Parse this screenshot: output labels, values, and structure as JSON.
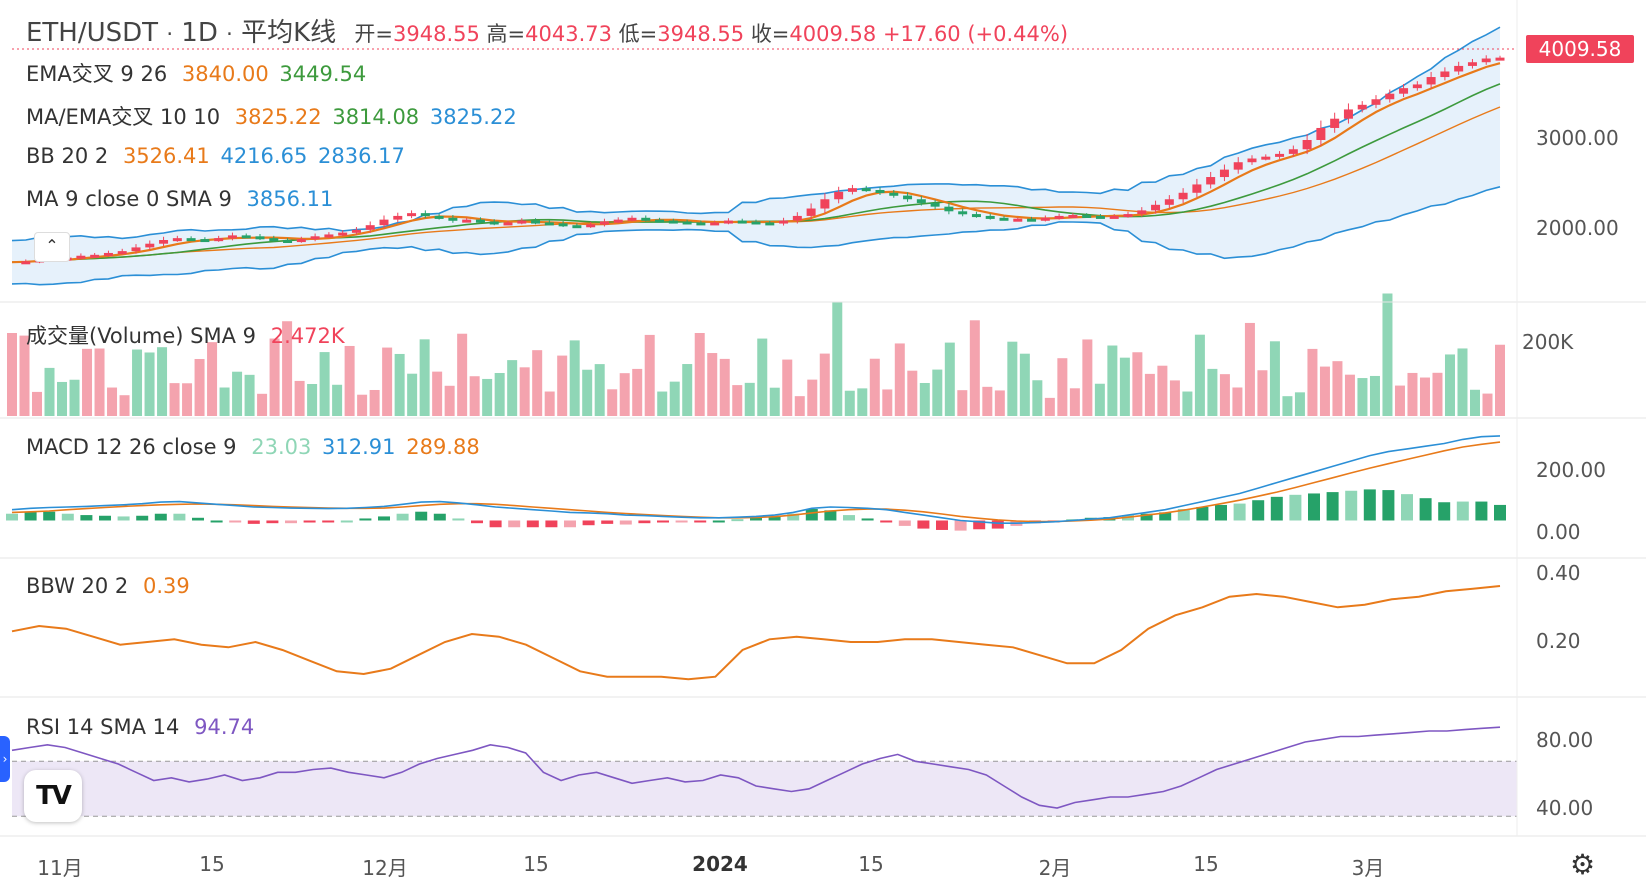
{
  "header": {
    "symbol": "ETH/USDT",
    "sep1": "·",
    "interval": "1D",
    "sep2": "·",
    "chart_style": "平均K线",
    "open_label": "开=",
    "open": "3948.55",
    "high_label": "高=",
    "high": "4043.73",
    "low_label": "低=",
    "low": "3948.55",
    "close_label": "收=",
    "close": "4009.58",
    "change": "+17.60 (+0.44%)"
  },
  "last_price_tag": "4009.58",
  "indicators": {
    "ema_cross": {
      "label": "EMA交叉 9 26",
      "v1": "3840.00",
      "v2": "3449.54"
    },
    "ma_ema_cross": {
      "label": "MA/EMA交叉 10 10",
      "v1": "3825.22",
      "v2": "3814.08",
      "v3": "3825.22"
    },
    "bb": {
      "label": "BB 20 2",
      "v1": "3526.41",
      "v2": "4216.65",
      "v3": "2836.17"
    },
    "ma": {
      "label": "MA 9 close 0 SMA 9",
      "v1": "3856.11"
    },
    "volume": {
      "label": "成交量(Volume) SMA 9",
      "v1": "2.472K"
    },
    "macd": {
      "label": "MACD 12 26 close 9",
      "v1": "23.03",
      "v2": "312.91",
      "v3": "289.88"
    },
    "bbw": {
      "label": "BBW 20 2",
      "v1": "0.39"
    },
    "rsi": {
      "label": "RSI 14 SMA 14",
      "v1": "94.74"
    }
  },
  "price_axis": [
    "3000.00",
    "2000.00"
  ],
  "volume_axis": [
    "200K"
  ],
  "macd_axis": [
    "200.00",
    "0.00"
  ],
  "bbw_axis": [
    "0.40",
    "0.20"
  ],
  "rsi_axis": [
    "80.00",
    "40.00"
  ],
  "time_axis": [
    {
      "label": "11月",
      "bold": false
    },
    {
      "label": "15",
      "bold": false
    },
    {
      "label": "12月",
      "bold": false
    },
    {
      "label": "15",
      "bold": false
    },
    {
      "label": "2024",
      "bold": true
    },
    {
      "label": "15",
      "bold": false
    },
    {
      "label": "2月",
      "bold": false
    },
    {
      "label": "15",
      "bold": false
    },
    {
      "label": "3月",
      "bold": false
    }
  ],
  "colors": {
    "up": "#f0435b",
    "down": "#26a269",
    "up_light": "#f4a3ae",
    "down_light": "#8fd6b6",
    "ema_fast": "#e87a1a",
    "ema_slow": "#3d9a3d",
    "bb": "#2b8fd6",
    "bb_fill": "#e6f1fb",
    "macd": "#2b8fd6",
    "signal": "#e87a1a",
    "bbw": "#e87a1a",
    "rsi": "#7e57c2",
    "rsi_band": "#ede7f6"
  },
  "chart_data": {
    "type": "candlestick-with-indicators",
    "symbol": "ETH/USDT",
    "interval": "1D",
    "style": "Heikin Ashi",
    "price_range": [
      1500,
      4200
    ],
    "close_series": [
      1800,
      1810,
      1830,
      1840,
      1850,
      1870,
      1880,
      1900,
      1920,
      1960,
      2000,
      2040,
      2060,
      2050,
      2040,
      2060,
      2090,
      2080,
      2060,
      2040,
      2030,
      2050,
      2080,
      2100,
      2120,
      2150,
      2200,
      2260,
      2300,
      2330,
      2300,
      2280,
      2250,
      2260,
      2240,
      2220,
      2230,
      2250,
      2230,
      2220,
      2200,
      2190,
      2210,
      2240,
      2260,
      2280,
      2260,
      2250,
      2240,
      2230,
      2220,
      2230,
      2250,
      2240,
      2230,
      2220,
      2250,
      2300,
      2380,
      2480,
      2560,
      2600,
      2580,
      2550,
      2520,
      2480,
      2440,
      2400,
      2350,
      2320,
      2300,
      2280,
      2270,
      2270,
      2260,
      2280,
      2300,
      2310,
      2300,
      2290,
      2300,
      2320,
      2360,
      2420,
      2480,
      2550,
      2640,
      2720,
      2800,
      2880,
      2920,
      2940,
      2970,
      3020,
      3120,
      3250,
      3350,
      3450,
      3500,
      3560,
      3620,
      3680,
      3720,
      3800,
      3860,
      3920,
      3960,
      4000,
      4009.58
    ],
    "volume_axis_max": "200K",
    "macd_range": [
      -50,
      320
    ],
    "macd_series": [
      40,
      45,
      48,
      50,
      52,
      55,
      58,
      62,
      68,
      70,
      65,
      60,
      55,
      50,
      48,
      46,
      45,
      44,
      45,
      48,
      52,
      60,
      68,
      70,
      65,
      58,
      50,
      45,
      40,
      35,
      30,
      28,
      25,
      20,
      18,
      15,
      12,
      10,
      10,
      12,
      15,
      20,
      30,
      45,
      50,
      48,
      45,
      40,
      30,
      20,
      10,
      0,
      -5,
      -10,
      -10,
      -8,
      -5,
      0,
      5,
      10,
      20,
      30,
      40,
      55,
      70,
      85,
      100,
      120,
      140,
      160,
      180,
      200,
      220,
      240,
      255,
      265,
      275,
      285,
      300,
      310,
      312.91
    ],
    "signal_series": [
      30,
      32,
      35,
      40,
      44,
      48,
      52,
      55,
      58,
      60,
      61,
      60,
      58,
      55,
      52,
      50,
      48,
      46,
      45,
      45,
      46,
      50,
      55,
      60,
      62,
      62,
      60,
      55,
      50,
      45,
      40,
      35,
      30,
      26,
      22,
      18,
      15,
      12,
      10,
      10,
      11,
      14,
      20,
      28,
      35,
      40,
      42,
      42,
      38,
      32,
      24,
      15,
      8,
      2,
      -2,
      -4,
      -4,
      -2,
      1,
      5,
      12,
      20,
      28,
      38,
      50,
      62,
      75,
      90,
      105,
      122,
      140,
      158,
      176,
      194,
      210,
      226,
      242,
      258,
      272,
      282,
      289.88
    ],
    "bbw_range": [
      0,
      0.45
    ],
    "bbw_series": [
      0.22,
      0.24,
      0.23,
      0.2,
      0.17,
      0.18,
      0.19,
      0.17,
      0.16,
      0.18,
      0.15,
      0.11,
      0.07,
      0.06,
      0.08,
      0.13,
      0.18,
      0.21,
      0.2,
      0.17,
      0.12,
      0.07,
      0.05,
      0.05,
      0.05,
      0.04,
      0.05,
      0.15,
      0.19,
      0.2,
      0.19,
      0.18,
      0.18,
      0.19,
      0.19,
      0.18,
      0.17,
      0.16,
      0.13,
      0.1,
      0.1,
      0.15,
      0.23,
      0.28,
      0.31,
      0.35,
      0.36,
      0.35,
      0.33,
      0.31,
      0.32,
      0.34,
      0.35,
      0.37,
      0.38,
      0.39
    ],
    "rsi_range": [
      20,
      100
    ],
    "rsi_series": [
      78,
      80,
      82,
      80,
      76,
      72,
      68,
      62,
      56,
      58,
      55,
      57,
      60,
      56,
      58,
      62,
      62,
      64,
      65,
      62,
      60,
      58,
      62,
      68,
      72,
      75,
      78,
      82,
      80,
      76,
      62,
      56,
      60,
      62,
      58,
      54,
      56,
      58,
      55,
      56,
      60,
      58,
      52,
      50,
      48,
      50,
      56,
      62,
      68,
      72,
      75,
      70,
      68,
      66,
      64,
      60,
      52,
      44,
      38,
      36,
      40,
      42,
      44,
      44,
      46,
      48,
      52,
      58,
      64,
      68,
      72,
      76,
      80,
      84,
      86,
      88,
      88,
      89,
      90,
      91,
      92,
      92,
      93,
      94,
      94.74
    ],
    "grid": false,
    "legend": "top-left"
  }
}
